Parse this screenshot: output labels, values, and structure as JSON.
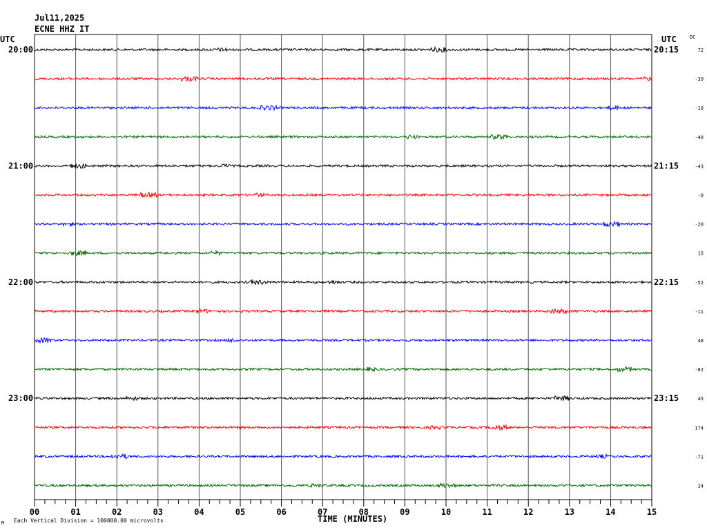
{
  "header": {
    "date": "Jul11,2025",
    "station": "ECNE HHZ IT"
  },
  "left_axis": {
    "title": "UTC",
    "hour_labels": [
      "20:00",
      "21:00",
      "22:00",
      "23:00"
    ]
  },
  "right_axis": {
    "title": "UTC",
    "hour_labels": [
      "20:15",
      "21:15",
      "22:15",
      "23:15"
    ],
    "dc_title": "DC"
  },
  "x_axis": {
    "title": "TIME (MINUTES)",
    "ticks": [
      "00",
      "01",
      "02",
      "03",
      "04",
      "05",
      "06",
      "07",
      "08",
      "09",
      "10",
      "11",
      "12",
      "13",
      "14",
      "15"
    ]
  },
  "footer": {
    "scale_note": "Each Vertical Division = 100000.00 microvolts"
  },
  "colors": {
    "trace_cycle": [
      "#000000",
      "#ff0000",
      "#0000ff",
      "#006400"
    ],
    "grid": "#000000"
  },
  "chart_data": {
    "type": "line",
    "title": "",
    "xlabel": "TIME (MINUTES)",
    "xlim": [
      0,
      15
    ],
    "rows": 16,
    "minutes_per_row": 15,
    "series": [
      {
        "dc": "72"
      },
      {
        "dc": "-39"
      },
      {
        "dc": "-10"
      },
      {
        "dc": "-40"
      },
      {
        "dc": "-43"
      },
      {
        "dc": "-0"
      },
      {
        "dc": "-20"
      },
      {
        "dc": "15"
      },
      {
        "dc": "-52"
      },
      {
        "dc": "-11"
      },
      {
        "dc": "48"
      },
      {
        "dc": "-82"
      },
      {
        "dc": "45"
      },
      {
        "dc": "174"
      },
      {
        "dc": "-71"
      },
      {
        "dc": "24"
      }
    ]
  }
}
